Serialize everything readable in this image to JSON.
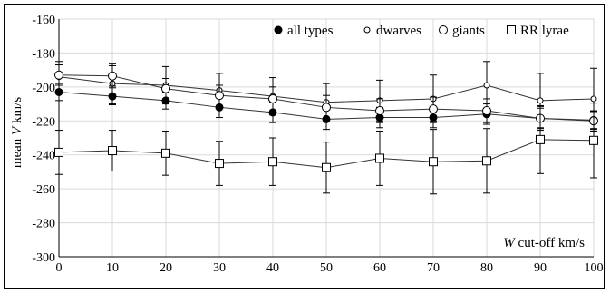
{
  "chart_data": {
    "type": "line",
    "x": [
      0,
      10,
      20,
      30,
      40,
      50,
      60,
      70,
      80,
      90,
      100
    ],
    "xlabel_var": "W",
    "xlabel_rest": " cut-off km/s",
    "ylabel_pre": "mean ",
    "ylabel_var": "V",
    "ylabel_post": " km/s",
    "xlim": [
      0,
      100
    ],
    "ylim": [
      -300,
      -160
    ],
    "xticks": [
      0,
      10,
      20,
      30,
      40,
      50,
      60,
      70,
      80,
      90,
      100
    ],
    "yticks": [
      -160,
      -180,
      -200,
      -220,
      -240,
      -260,
      -280,
      -300
    ],
    "grid": true,
    "legend_position": "top-right",
    "series": [
      {
        "name": "all types",
        "marker": "filled-circle",
        "color": "#000000",
        "values": [
          -203,
          -205.5,
          -208,
          -212,
          -215,
          -219,
          -218,
          -218,
          -216,
          -218.5,
          -219.5
        ],
        "err": [
          5,
          5,
          5,
          6,
          6,
          6,
          6,
          6,
          6,
          6,
          5
        ]
      },
      {
        "name": "dwarves",
        "marker": "small-open-circle",
        "color": "#000000",
        "values": [
          -194,
          -198,
          -199,
          -202,
          -205.5,
          -209,
          -208,
          -207,
          -199,
          -208,
          -207
        ],
        "err": [
          9,
          12,
          11,
          10,
          11,
          11,
          12,
          14,
          14,
          16,
          18
        ]
      },
      {
        "name": "giants",
        "marker": "open-circle",
        "color": "#000000",
        "values": [
          -193,
          -193.5,
          -201,
          -205,
          -207,
          -212,
          -214,
          -213,
          -214,
          -218.5,
          -220
        ],
        "err": [
          6,
          6,
          6,
          6,
          7,
          7,
          7,
          7,
          7,
          7,
          6
        ]
      },
      {
        "name": "RR lyrae",
        "marker": "open-square",
        "color": "#000000",
        "values": [
          -238.5,
          -237.5,
          -239,
          -245,
          -244,
          -247.5,
          -242,
          -244,
          -243.5,
          -231,
          -231.5
        ],
        "err": [
          13,
          12,
          13,
          13,
          14,
          15,
          16,
          19,
          19,
          20,
          22
        ]
      }
    ]
  }
}
